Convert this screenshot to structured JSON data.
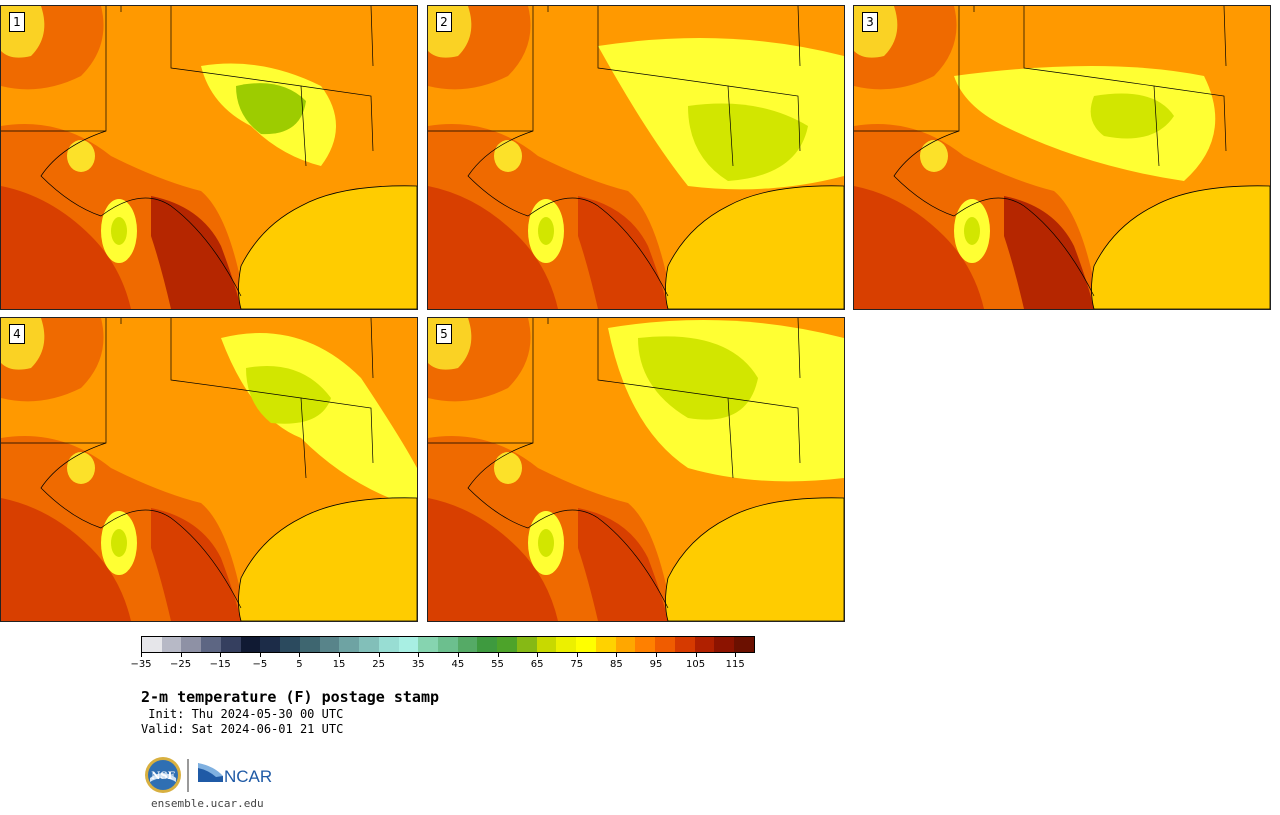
{
  "panels": [
    {
      "label": "1",
      "variant": 0
    },
    {
      "label": "2",
      "variant": 1
    },
    {
      "label": "3",
      "variant": 2
    },
    {
      "label": "4",
      "variant": 3
    },
    {
      "label": "5",
      "variant": 4
    }
  ],
  "colorbar": {
    "colors": [
      "#e6e6ea",
      "#b7b9c6",
      "#8e91a5",
      "#5d6683",
      "#353f5f",
      "#101a33",
      "#1c2c48",
      "#2b4a5e",
      "#3e6670",
      "#58848a",
      "#6ea3a3",
      "#82bfb9",
      "#98ddd3",
      "#a8efe3",
      "#86d4b0",
      "#6cbf8e",
      "#55aa66",
      "#3e9a3f",
      "#4da32a",
      "#86b915",
      "#c8d900",
      "#ecf000",
      "#ffff00",
      "#ffd200",
      "#ffa700",
      "#ff8000",
      "#f05c00",
      "#d63a00",
      "#b02000",
      "#8c1300",
      "#6b1000"
    ],
    "tick_labels": [
      "−35",
      "−25",
      "−15",
      "−5",
      "5",
      "15",
      "25",
      "35",
      "45",
      "55",
      "65",
      "75",
      "85",
      "95",
      "105",
      "115"
    ]
  },
  "title": "2-m temperature (F) postage stamp",
  "init_line": " Init: Thu 2024-05-30 00 UTC",
  "valid_line": "Valid: Sat 2024-06-01 21 UTC",
  "logo": {
    "nsf": "NSF",
    "ncar": "NCAR"
  },
  "site": "ensemble.ucar.edu",
  "map_colors": {
    "gulf": "#ffcc00",
    "hot_dark": "#b52600",
    "hot": "#d83f00",
    "warm": "#ef6a00",
    "mid": "#ff9900",
    "mild": "#ffd000",
    "cool_yellow": "#ffff33",
    "cool_green": "#d2e600",
    "coolest": "#9dcc00"
  }
}
